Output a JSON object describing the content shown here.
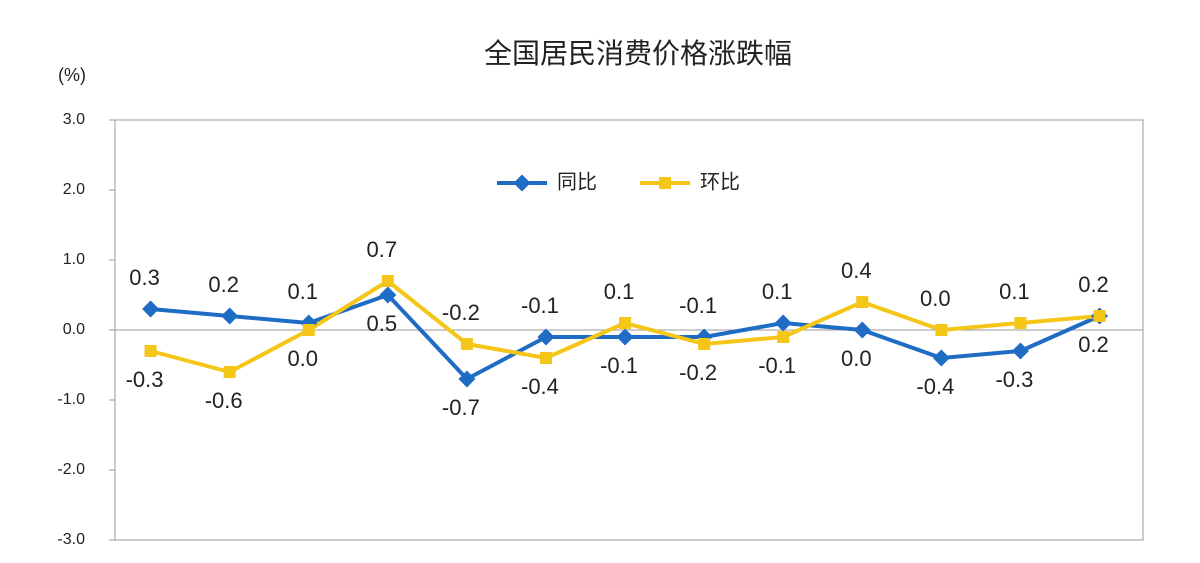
{
  "chart_data": {
    "type": "line",
    "title": "全国居民消费价格涨跌幅",
    "y_label": "(%)",
    "categories": [
      null,
      null,
      null,
      null,
      null,
      null,
      null,
      null,
      null,
      null,
      null,
      null,
      null
    ],
    "series": [
      {
        "name": "同比",
        "color": "#1f6cc4",
        "values": [
          0.3,
          0.2,
          0.1,
          0.5,
          -0.7,
          -0.1,
          -0.1,
          -0.1,
          0.1,
          0.0,
          -0.4,
          -0.3,
          0.2
        ],
        "value_labels": [
          "0.3",
          "0.2",
          "0.1",
          "0.5",
          "-0.7",
          "-0.1",
          "-0.1",
          "-0.1",
          "0.1",
          "0.0",
          "-0.4",
          "-0.3",
          "0.2"
        ]
      },
      {
        "name": "环比",
        "color": "#f5c518",
        "values": [
          -0.3,
          -0.6,
          0.0,
          0.7,
          -0.2,
          -0.4,
          0.1,
          -0.2,
          -0.1,
          0.4,
          0.0,
          0.1,
          0.2
        ],
        "value_labels": [
          "-0.3",
          "-0.6",
          "0.0",
          "0.7",
          "-0.2",
          "-0.4",
          "0.1",
          "-0.2",
          "-0.1",
          "0.4",
          "0.0",
          "0.1",
          "0.2"
        ]
      }
    ],
    "ylim": [
      -3,
      3
    ],
    "yticks": [
      {
        "value": -3,
        "label": "-3.0"
      },
      {
        "value": -2,
        "label": "-2.0"
      },
      {
        "value": -1,
        "label": "-1.0"
      },
      {
        "value": 0,
        "label": "0.0"
      },
      {
        "value": 1,
        "label": "1.0"
      },
      {
        "value": 2,
        "label": "2.0"
      },
      {
        "value": 3,
        "label": "3.0"
      }
    ],
    "legend": "top"
  }
}
